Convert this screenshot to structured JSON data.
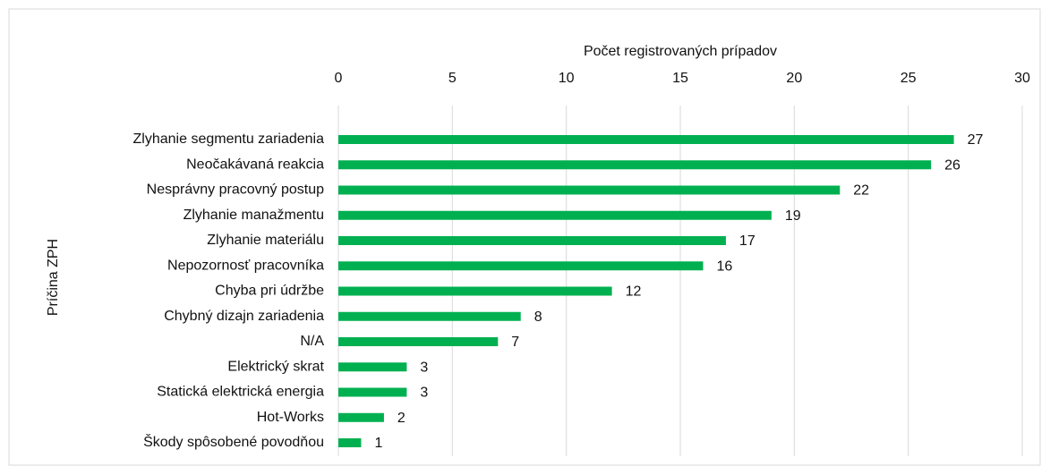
{
  "chart_data": {
    "type": "bar",
    "orientation": "horizontal",
    "x_label": "Počet registrovaných prípadov",
    "y_label": "Príčina ZPH",
    "categories": [
      "Zlyhanie segmentu zariadenia",
      "Neočakávaná reakcia",
      "Nesprávny pracovný postup",
      "Zlyhanie manažmentu",
      "Zlyhanie materiálu",
      "Nepozornosť pracovníka",
      "Chyba pri údržbe",
      "Chybný dizajn zariadenia",
      "N/A",
      "Elektrický skrat",
      "Statická elektrická energia",
      "Hot-Works",
      "Škody spôsobené povodňou"
    ],
    "values": [
      27,
      26,
      22,
      19,
      17,
      16,
      12,
      8,
      7,
      3,
      3,
      2,
      1
    ],
    "color": "#00b050",
    "xlim": [
      0,
      30
    ],
    "xticks": [
      0,
      5,
      10,
      15,
      20,
      25,
      30
    ],
    "grid": true,
    "x_axis_position": "top"
  }
}
